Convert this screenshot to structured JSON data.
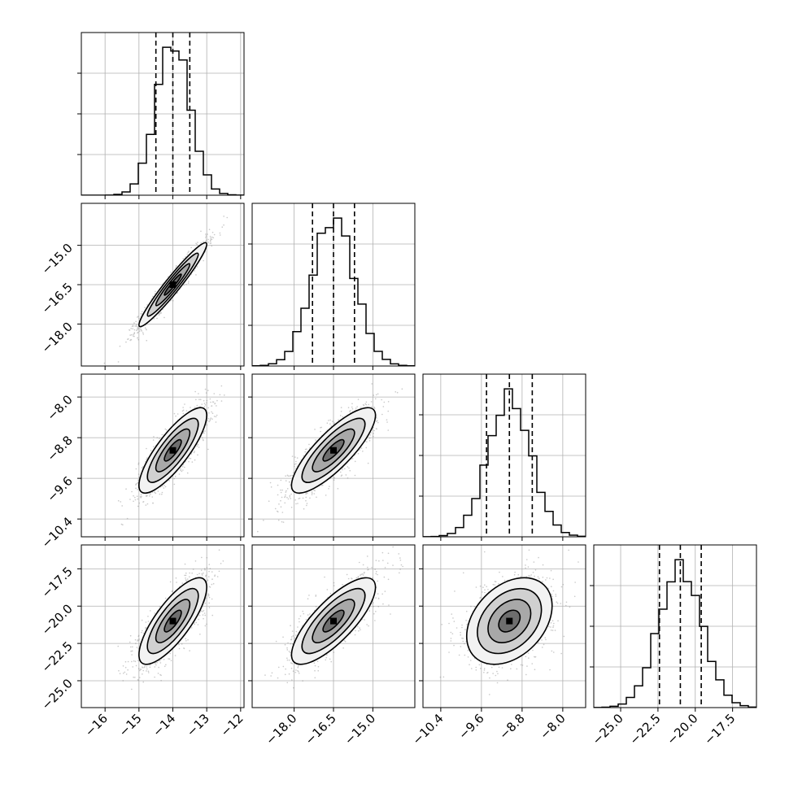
{
  "chart_data": {
    "type": "corner",
    "n_params": 4,
    "params": [
      {
        "mean": -14.0,
        "sd": 0.5,
        "q16": -14.5,
        "q50": -14.0,
        "q84": -13.5,
        "range": [
          -16.7,
          -11.9
        ],
        "ticks": [
          -16,
          -15,
          -14,
          -13,
          -12
        ],
        "tick_labels": [
          "−16",
          "−15",
          "−14",
          "−13",
          "−12"
        ]
      },
      {
        "mean": -16.5,
        "sd": 0.8,
        "q16": -17.3,
        "q50": -16.5,
        "q84": -15.7,
        "range": [
          -19.6,
          -13.4
        ],
        "ticks": [
          -18.0,
          -16.5,
          -15.0
        ],
        "tick_labels": [
          "−18.0",
          "−16.5",
          "−15.0"
        ]
      },
      {
        "mean": -9.05,
        "sd": 0.42,
        "q16": -9.5,
        "q50": -9.05,
        "q84": -8.6,
        "range": [
          -10.75,
          -7.55
        ],
        "ticks": [
          -10.4,
          -9.6,
          -8.8,
          -8.0
        ],
        "tick_labels": [
          "−10.4",
          "−9.6",
          "−8.8",
          "−8.0"
        ]
      },
      {
        "mean": -21.0,
        "sd": 1.45,
        "q16": -22.4,
        "q50": -21.0,
        "q84": -19.6,
        "range": [
          -26.8,
          -15.9
        ],
        "ticks": [
          -25.0,
          -22.5,
          -20.0,
          -17.5
        ],
        "tick_labels": [
          "−25.0",
          "−22.5",
          "−20.0",
          "−17.5"
        ]
      }
    ],
    "correlations": [
      [
        1.0,
        0.96,
        0.82,
        0.78
      ],
      [
        0.96,
        1.0,
        0.82,
        0.78
      ],
      [
        0.82,
        0.82,
        1.0,
        0.35
      ],
      [
        0.78,
        0.78,
        0.35,
        1.0
      ]
    ],
    "histogram_bins": 20,
    "quantile_lines": [
      "q16",
      "q50",
      "q84"
    ],
    "contour_levels_sigma": [
      0.5,
      1.0,
      1.5,
      2.0
    ],
    "grid": true,
    "colors": {
      "line": "#000000",
      "grid": "#b0b0b0",
      "points": "#8a8a8a"
    }
  }
}
